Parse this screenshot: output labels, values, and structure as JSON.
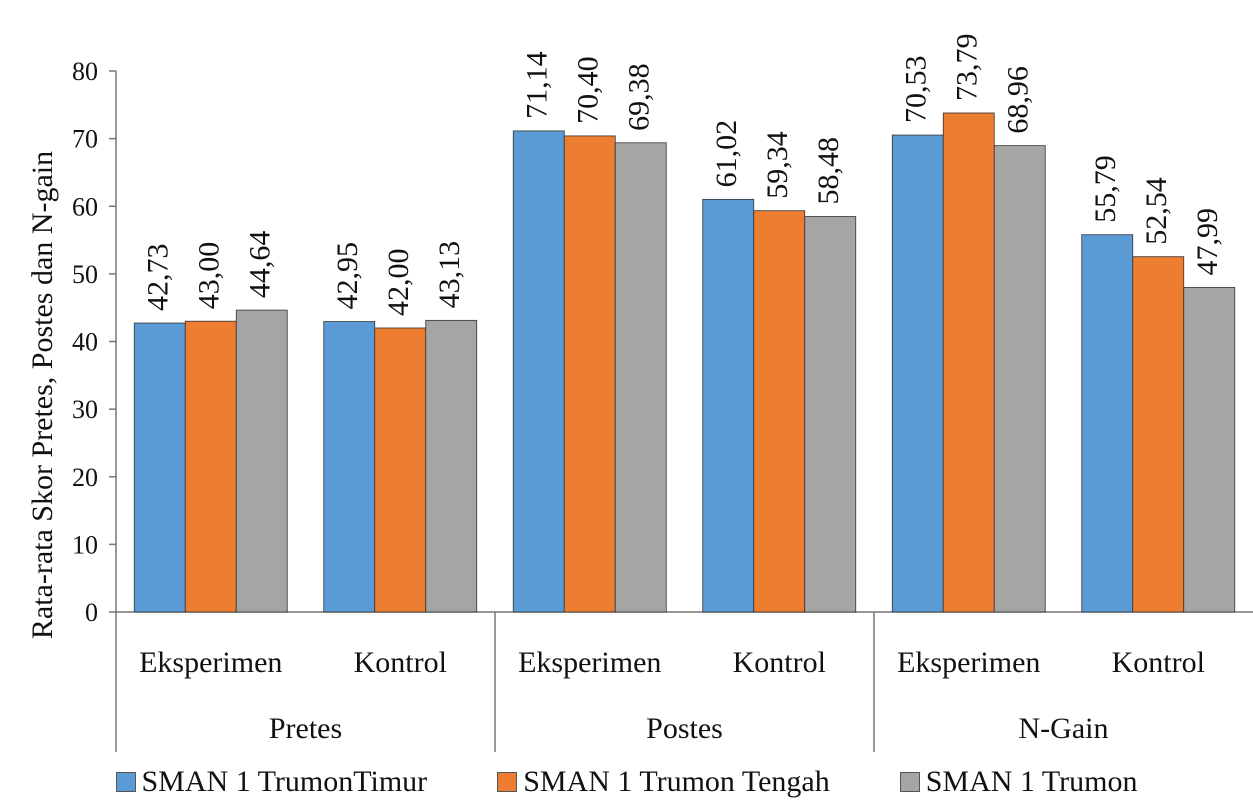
{
  "chart_data": {
    "type": "bar",
    "ylabel": "Rata-rata Skor Pretes, Postes dan N-gain",
    "ylim": [
      0,
      80
    ],
    "yticks": [
      "0",
      "10",
      "20",
      "30",
      "40",
      "50",
      "60",
      "70",
      "80"
    ],
    "groups": [
      {
        "label": "Pretes",
        "categories": [
          "Eksperimen",
          "Kontrol"
        ]
      },
      {
        "label": "Postes",
        "categories": [
          "Eksperimen",
          "Kontrol"
        ]
      },
      {
        "label": "N-Gain",
        "categories": [
          "Eksperimen",
          "Kontrol"
        ]
      }
    ],
    "series": [
      {
        "name": "SMAN 1 TrumonTimur",
        "color": "#5b9bd5",
        "values": [
          42.73,
          42.95,
          71.14,
          61.02,
          70.53,
          55.79
        ],
        "labels": [
          "42,73",
          "42,95",
          "71,14",
          "61,02",
          "70,53",
          "55,79"
        ]
      },
      {
        "name": "SMAN 1 Trumon Tengah",
        "color": "#ed7d31",
        "values": [
          43.0,
          42.0,
          70.4,
          59.34,
          73.79,
          52.54
        ],
        "labels": [
          "43,00",
          "42,00",
          "70,40",
          "59,34",
          "73,79",
          "52,54"
        ]
      },
      {
        "name": "SMAN 1 Trumon",
        "color": "#a5a5a5",
        "values": [
          44.64,
          43.13,
          69.38,
          58.48,
          68.96,
          47.99
        ],
        "labels": [
          "44,64",
          "43,13",
          "69,38",
          "58,48",
          "68,96",
          "47,99"
        ]
      }
    ],
    "grid": false,
    "legend_position": "bottom"
  }
}
